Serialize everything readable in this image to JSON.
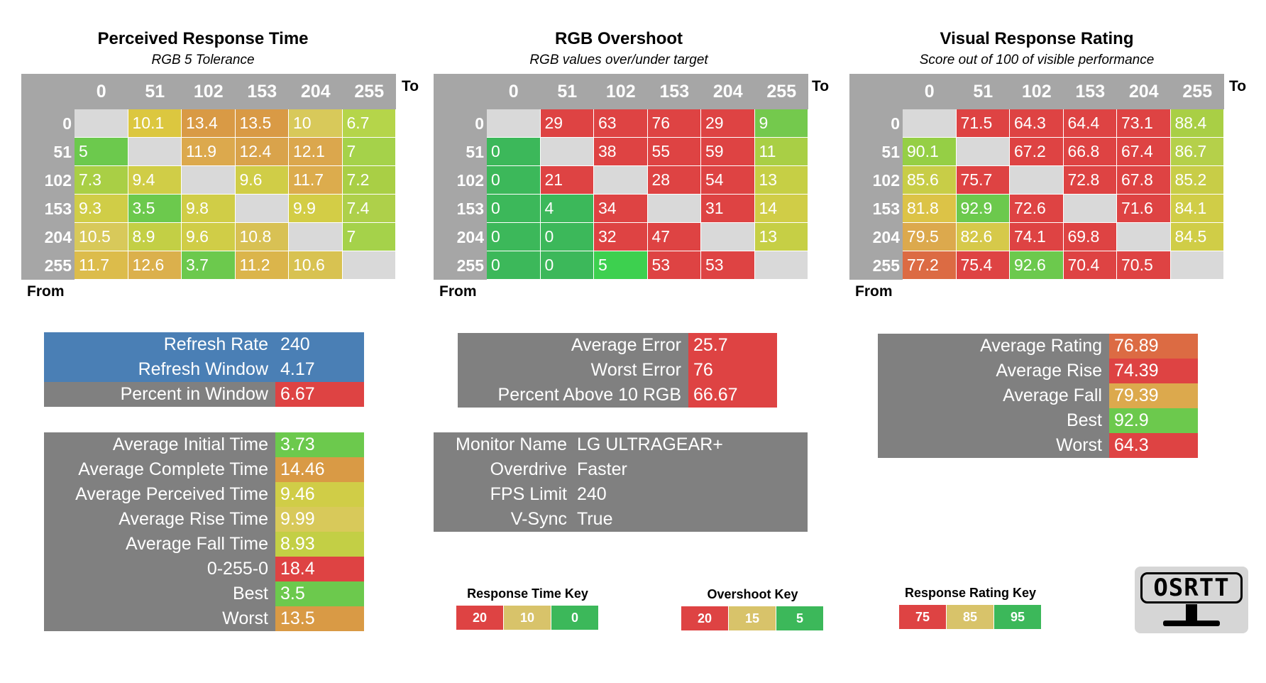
{
  "chart_data": [
    {
      "type": "heatmap",
      "title": "Perceived Response Time",
      "subtitle": "RGB 5 Tolerance",
      "xlabel": "To",
      "ylabel": "From",
      "categories": [
        "0",
        "51",
        "102",
        "153",
        "204",
        "255"
      ],
      "values": [
        [
          null,
          "10.1",
          "13.4",
          "13.5",
          "10",
          "6.7"
        ],
        [
          "5",
          null,
          "11.9",
          "12.4",
          "12.1",
          "7"
        ],
        [
          "7.3",
          "9.4",
          null,
          "9.6",
          "11.7",
          "7.2"
        ],
        [
          "9.3",
          "3.5",
          "9.8",
          null,
          "9.9",
          "7.4"
        ],
        [
          "10.5",
          "8.9",
          "9.6",
          "10.8",
          null,
          "7"
        ],
        [
          "11.7",
          "12.6",
          "3.7",
          "11.2",
          "10.6",
          null
        ]
      ],
      "colors": [
        [
          null,
          "#dcc73f",
          "#d99a45",
          "#d99a45",
          "#d8c95a",
          "#b5d54a"
        ],
        [
          "#6cc94d",
          null,
          "#dca94d",
          "#d9a34b",
          "#dba74d",
          "#a5d24a"
        ],
        [
          "#a9cf45",
          "#d0cd47",
          null,
          "#d0cd47",
          "#dcac4d",
          "#a9cf45"
        ],
        [
          "#d0cd47",
          "#6cc94d",
          "#d0cd47",
          null,
          "#d3cd46",
          "#aed04a"
        ],
        [
          "#d8c95a",
          "#c3cf45",
          "#d0cd47",
          "#d8c154",
          null,
          "#a5d24a"
        ],
        [
          "#dcbc4b",
          "#dbb04c",
          "#6cc94d",
          "#dbb54b",
          "#d8c251",
          null
        ]
      ]
    },
    {
      "type": "heatmap",
      "title": "RGB Overshoot",
      "subtitle": "RGB values over/under target",
      "xlabel": "To",
      "ylabel": "From",
      "categories": [
        "0",
        "51",
        "102",
        "153",
        "204",
        "255"
      ],
      "values": [
        [
          null,
          "29",
          "63",
          "76",
          "29",
          "9"
        ],
        [
          "0",
          null,
          "38",
          "55",
          "59",
          "11"
        ],
        [
          "0",
          "21",
          null,
          "28",
          "54",
          "13"
        ],
        [
          "0",
          "4",
          "34",
          null,
          "31",
          "14"
        ],
        [
          "0",
          "0",
          "32",
          "47",
          null,
          "13"
        ],
        [
          "0",
          "0",
          "5",
          "53",
          "53",
          null
        ]
      ],
      "colors": [
        [
          null,
          "#de4343",
          "#de4343",
          "#de4343",
          "#de4343",
          "#74c94d"
        ],
        [
          "#3cb85a",
          null,
          "#de4343",
          "#de4343",
          "#de4343",
          "#a9cf45"
        ],
        [
          "#3cb85a",
          "#de4343",
          null,
          "#de4343",
          "#de4343",
          "#c6cf45"
        ],
        [
          "#3cb85a",
          "#3cb85a",
          "#de4343",
          null,
          "#de4343",
          "#d0cd47"
        ],
        [
          "#3cb85a",
          "#3cb85a",
          "#de4343",
          "#de4343",
          null,
          "#c6cf45"
        ],
        [
          "#3cb85a",
          "#3cb85a",
          "#3dd04f",
          "#de4343",
          "#de4343",
          null
        ]
      ]
    },
    {
      "type": "heatmap",
      "title": "Visual Response Rating",
      "subtitle": "Score out of 100 of visible performance",
      "xlabel": "To",
      "ylabel": "From",
      "categories": [
        "0",
        "51",
        "102",
        "153",
        "204",
        "255"
      ],
      "values": [
        [
          null,
          "71.5",
          "64.3",
          "64.4",
          "73.1",
          "88.4"
        ],
        [
          "90.1",
          null,
          "67.2",
          "66.8",
          "67.4",
          "86.7"
        ],
        [
          "85.6",
          "75.7",
          null,
          "72.8",
          "67.8",
          "85.2"
        ],
        [
          "81.8",
          "92.9",
          "72.6",
          null,
          "71.6",
          "84.1"
        ],
        [
          "79.5",
          "82.6",
          "74.1",
          "69.8",
          null,
          "84.5"
        ],
        [
          "77.2",
          "75.4",
          "92.6",
          "70.4",
          "70.5",
          null
        ]
      ],
      "colors": [
        [
          null,
          "#de4343",
          "#de4343",
          "#de4343",
          "#de4343",
          "#a9cf45"
        ],
        [
          "#95cf45",
          null,
          "#de4343",
          "#de4343",
          "#de4343",
          "#b5d04a"
        ],
        [
          "#c8cd47",
          "#de4343",
          null,
          "#de4343",
          "#de4343",
          "#c8cd47"
        ],
        [
          "#dcc347",
          "#6cc94d",
          "#de4343",
          null,
          "#de4343",
          "#d0cd47"
        ],
        [
          "#dca94d",
          "#d6c94a",
          "#de4343",
          "#de4343",
          null,
          "#d0cd47"
        ],
        [
          "#dc6b43",
          "#de4343",
          "#6cc94d",
          "#de4343",
          "#de4343",
          null
        ]
      ]
    }
  ],
  "refresh_table": [
    {
      "label": "Refresh Rate",
      "value": "240",
      "color": "#4a7fb5"
    },
    {
      "label": "Refresh Window",
      "value": "4.17",
      "color": "#4a7fb5"
    },
    {
      "label": "Percent in Window",
      "value": "6.67",
      "color": "#de4343"
    }
  ],
  "time_table": [
    {
      "label": "Average Initial Time",
      "value": "3.73",
      "color": "#6cc94d"
    },
    {
      "label": "Average Complete Time",
      "value": "14.46",
      "color": "#d99a45"
    },
    {
      "label": "Average Perceived Time",
      "value": "9.46",
      "color": "#d0cd47"
    },
    {
      "label": "Average Rise Time",
      "value": "9.99",
      "color": "#d8c95a"
    },
    {
      "label": "Average Fall Time",
      "value": "8.93",
      "color": "#c3cf45"
    },
    {
      "label": "0-255-0",
      "value": "18.4",
      "color": "#de4343"
    },
    {
      "label": "Best",
      "value": "3.5",
      "color": "#6cc94d"
    },
    {
      "label": "Worst",
      "value": "13.5",
      "color": "#d99a45"
    }
  ],
  "error_table": [
    {
      "label": "Average Error",
      "value": "25.7",
      "color": "#de4343"
    },
    {
      "label": "Worst Error",
      "value": "76",
      "color": "#de4343"
    },
    {
      "label": "Percent Above 10 RGB",
      "value": "66.67",
      "color": "#de4343"
    }
  ],
  "monitor_info": [
    {
      "label": "Monitor Name",
      "value": "LG ULTRAGEAR+"
    },
    {
      "label": "Overdrive",
      "value": "Faster"
    },
    {
      "label": "FPS Limit",
      "value": "240"
    },
    {
      "label": "V-Sync",
      "value": "True"
    }
  ],
  "rating_table": [
    {
      "label": "Average Rating",
      "value": "76.89",
      "color": "#dc6b43"
    },
    {
      "label": "Average Rise",
      "value": "74.39",
      "color": "#de4343"
    },
    {
      "label": "Average Fall",
      "value": "79.39",
      "color": "#dca94d"
    },
    {
      "label": "Best",
      "value": "92.9",
      "color": "#6cc94d"
    },
    {
      "label": "Worst",
      "value": "64.3",
      "color": "#de4343"
    }
  ],
  "keys": [
    {
      "title": "Response Time Key",
      "cells": [
        {
          "label": "20",
          "color": "#de4343"
        },
        {
          "label": "10",
          "color": "#d8c36a"
        },
        {
          "label": "0",
          "color": "#3cb85a"
        }
      ]
    },
    {
      "title": "Overshoot Key",
      "cells": [
        {
          "label": "20",
          "color": "#de4343"
        },
        {
          "label": "15",
          "color": "#d8c36a"
        },
        {
          "label": "5",
          "color": "#3cb85a"
        }
      ]
    },
    {
      "title": "Response Rating Key",
      "cells": [
        {
          "label": "75",
          "color": "#de4343"
        },
        {
          "label": "85",
          "color": "#d8c36a"
        },
        {
          "label": "95",
          "color": "#3cb85a"
        }
      ]
    }
  ],
  "logo": {
    "text": "OSRTT",
    "icon": "monitor-icon"
  }
}
